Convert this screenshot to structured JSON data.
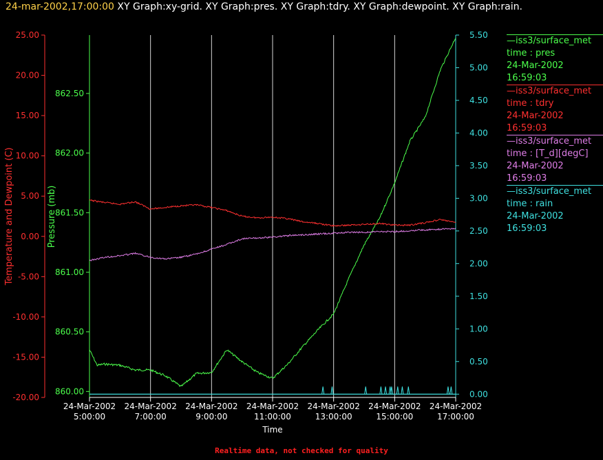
{
  "header": {
    "datetime": "24-mar-2002,17:00:00",
    "graphs": "XY Graph:xy-grid.  XY Graph:pres.  XY Graph:tdry.  XY Graph:dewpoint.  XY Graph:rain."
  },
  "legend": [
    {
      "title": "—iss3/surface_met",
      "field": "time : pres",
      "date": "24-Mar-2002",
      "time": "16:59:03",
      "color": "#4cff4c"
    },
    {
      "title": "—iss3/surface_met",
      "field": "time : tdry",
      "date": "24-Mar-2002",
      "time": "16:59:03",
      "color": "#ff3030"
    },
    {
      "title": "—iss3/surface_met",
      "field": "time : [T_d][degC]",
      "date": "24-Mar-2002",
      "time": "16:59:03",
      "color": "#e07ee8"
    },
    {
      "title": "—iss3/surface_met",
      "field": "time : rain",
      "date": "24-Mar-2002",
      "time": "16:59:03",
      "color": "#3fe0e0"
    }
  ],
  "footer_note": "Realtime data, not checked for quality",
  "chart_data": {
    "type": "line",
    "xlabel": "Time",
    "x_ticks": [
      {
        "date": "24-Mar-2002",
        "time": "5:00:00",
        "hour": 5
      },
      {
        "date": "24-Mar-2002",
        "time": "7:00:00",
        "hour": 7
      },
      {
        "date": "24-Mar-2002",
        "time": "9:00:00",
        "hour": 9
      },
      {
        "date": "24-Mar-2002",
        "time": "11:00:00",
        "hour": 11
      },
      {
        "date": "24-Mar-2002",
        "time": "13:00:00",
        "hour": 13
      },
      {
        "date": "24-Mar-2002",
        "time": "15:00:00",
        "hour": 15
      },
      {
        "date": "24-Mar-2002",
        "time": "17:00:00",
        "hour": 17
      }
    ],
    "xlim_hours": [
      5,
      17
    ],
    "grid": "vertical",
    "axes": {
      "temp": {
        "label": "Temperature and Dewpoint (C)",
        "color": "#ff3030",
        "ylim": [
          -20,
          25
        ],
        "ticks": [
          "25.00",
          "20.00",
          "15.00",
          "10.00",
          "5.00",
          "0.00",
          "-5.00",
          "-10.00",
          "-15.00",
          "-20.00"
        ]
      },
      "pres": {
        "label": "Pressure (mb)",
        "color": "#4cff4c",
        "ylim": [
          859.95,
          862.99
        ],
        "ticks": [
          "862.50",
          "862.00",
          "861.50",
          "861.00",
          "860.50",
          "860.00"
        ]
      },
      "rain": {
        "label": "",
        "color": "#3fe0e0",
        "ylim": [
          -0.05,
          5.5
        ],
        "ticks": [
          "5.50",
          "5.00",
          "4.50",
          "4.00",
          "3.50",
          "3.00",
          "2.50",
          "2.00",
          "1.50",
          "1.00",
          "0.50",
          "0.00"
        ]
      }
    },
    "series": [
      {
        "name": "time : pres",
        "axis": "pres",
        "color": "#4cff4c",
        "x": [
          5.0,
          5.25,
          5.5,
          6.0,
          6.5,
          7.0,
          7.5,
          8.0,
          8.5,
          9.0,
          9.5,
          10.0,
          10.5,
          11.0,
          11.5,
          12.0,
          12.5,
          13.0,
          13.5,
          14.0,
          14.5,
          15.0,
          15.5,
          16.0,
          16.5,
          17.0
        ],
        "y": [
          860.35,
          860.22,
          860.23,
          860.22,
          860.18,
          860.18,
          860.13,
          860.04,
          860.15,
          860.16,
          860.35,
          860.25,
          860.16,
          860.11,
          860.23,
          860.38,
          860.52,
          860.65,
          860.95,
          861.23,
          861.45,
          861.75,
          862.1,
          862.3,
          862.7,
          862.97
        ]
      },
      {
        "name": "time : tdry",
        "axis": "temp",
        "color": "#ff3030",
        "x": [
          5.0,
          5.5,
          6.0,
          6.5,
          7.0,
          7.5,
          8.0,
          8.5,
          9.0,
          9.5,
          10.0,
          10.5,
          11.0,
          11.5,
          12.0,
          12.5,
          13.0,
          13.5,
          14.0,
          14.5,
          15.0,
          15.5,
          16.0,
          16.5,
          17.0
        ],
        "y": [
          4.5,
          4.2,
          4.0,
          4.3,
          3.4,
          3.6,
          3.8,
          3.9,
          3.6,
          3.2,
          2.5,
          2.3,
          2.4,
          2.2,
          1.8,
          1.6,
          1.3,
          1.4,
          1.5,
          1.6,
          1.4,
          1.4,
          1.7,
          2.1,
          1.7
        ]
      },
      {
        "name": "time : [T_d][degC]",
        "axis": "temp",
        "color": "#e07ee8",
        "x": [
          5.0,
          5.5,
          6.0,
          6.5,
          7.0,
          7.5,
          8.0,
          8.5,
          9.0,
          9.5,
          10.0,
          10.5,
          11.0,
          11.5,
          12.0,
          12.5,
          13.0,
          13.5,
          14.0,
          14.5,
          15.0,
          15.5,
          16.0,
          16.5,
          17.0
        ],
        "y": [
          -3.0,
          -2.6,
          -2.4,
          -2.1,
          -2.6,
          -2.8,
          -2.6,
          -2.2,
          -1.6,
          -1.0,
          -0.3,
          -0.2,
          -0.1,
          0.1,
          0.2,
          0.3,
          0.4,
          0.5,
          0.5,
          0.6,
          0.6,
          0.7,
          0.8,
          0.9,
          1.0
        ]
      },
      {
        "name": "time : rain",
        "axis": "rain",
        "color": "#3fe0e0",
        "baseline": 0.0,
        "spikes": [
          12.65,
          12.95,
          14.05,
          14.55,
          14.7,
          14.85,
          14.9,
          15.1,
          15.25,
          15.45,
          16.75,
          16.85
        ]
      }
    ]
  }
}
